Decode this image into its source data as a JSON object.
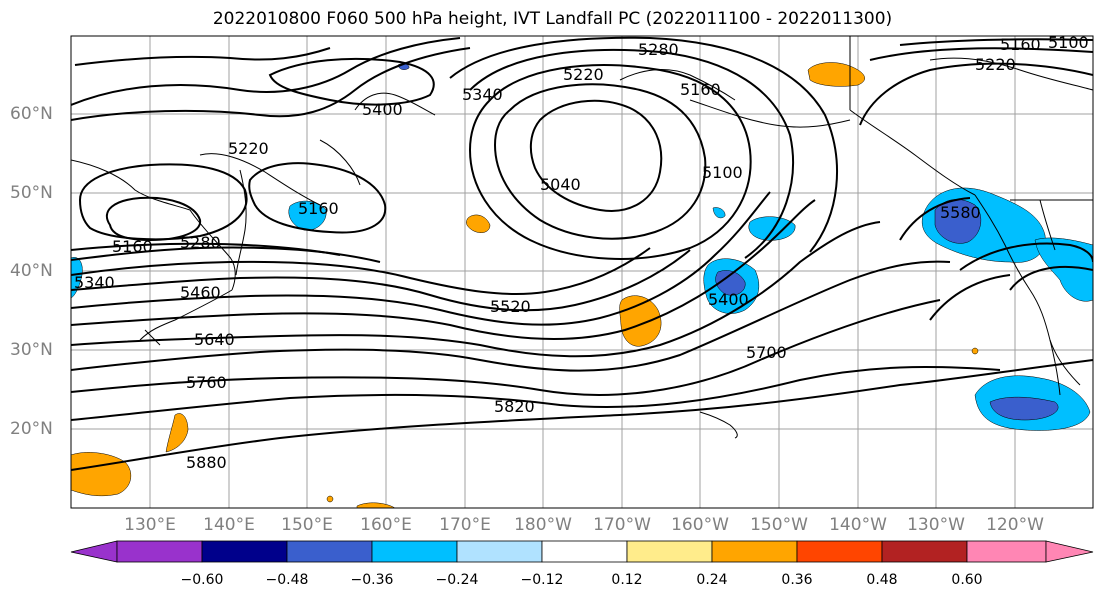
{
  "title": "2022010800 F060 500 hPa height, IVT Landfall PC (2022011100 - 2022011300)",
  "lat_labels": [
    "60°N",
    "50°N",
    "40°N",
    "30°N",
    "20°N"
  ],
  "lon_labels": [
    "130°E",
    "140°E",
    "150°E",
    "160°E",
    "170°E",
    "180°W",
    "170°W",
    "160°W",
    "150°W",
    "140°W",
    "130°W",
    "120°W"
  ],
  "contour_labels": [
    "5280",
    "5160",
    "5100",
    "5220",
    "5400",
    "5340",
    "5220",
    "5160",
    "5220",
    "5040",
    "5100",
    "5160",
    "5160",
    "5280",
    "5340",
    "5460",
    "5640",
    "5520",
    "5400",
    "5580",
    "5760",
    "5700",
    "5820",
    "5880"
  ],
  "colorbar": {
    "ticks": [
      "−0.60",
      "−0.48",
      "−0.36",
      "−0.24",
      "−0.12",
      "0.12",
      "0.24",
      "0.36",
      "0.48",
      "0.60"
    ],
    "colors": [
      "#9932cc",
      "#00008b",
      "#3a5fcd",
      "#00bfff",
      "#b0e2ff",
      "#ffffff",
      "#ffec8b",
      "#ffa500",
      "#ff4500",
      "#b22222",
      "#ff86b4"
    ]
  },
  "colors": {
    "negative_fill": "#00bfff",
    "negative_core": "#3a5fcd",
    "positive_fill": "#ffa500",
    "contour": "#000000",
    "grid": "#a0a0a0"
  }
}
